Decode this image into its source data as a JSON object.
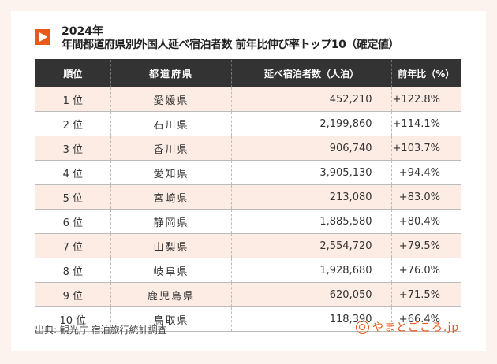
{
  "title": {
    "year": "2024年",
    "main": "年間都道府県別外国人延べ宿泊者数 前年比伸び率トップ10（確定値）"
  },
  "table": {
    "headers": [
      "順位",
      "都道府県",
      "延べ宿泊者数（人泊）",
      "前年比（%）"
    ],
    "rows": [
      [
        "1 位",
        "愛媛県",
        "452,210",
        "+122.8%"
      ],
      [
        "2 位",
        "石川県",
        "2,199,860",
        "+114.1%"
      ],
      [
        "3 位",
        "香川県",
        "906,740",
        "+103.7%"
      ],
      [
        "4 位",
        "愛知県",
        "3,905,130",
        "+94.4%"
      ],
      [
        "5 位",
        "宮崎県",
        "213,080",
        "+83.0%"
      ],
      [
        "6 位",
        "静岡県",
        "1,885,580",
        "+80.4%"
      ],
      [
        "7 位",
        "山梨県",
        "2,554,720",
        "+79.5%"
      ],
      [
        "8 位",
        "岐阜県",
        "1,928,680",
        "+76.0%"
      ],
      [
        "9 位",
        "鹿児島県",
        "620,050",
        "+71.5%"
      ],
      [
        "10 位",
        "鳥取県",
        "118,390",
        "+66.4%"
      ]
    ]
  },
  "footer": {
    "source": "出典: 観光庁 宿泊旅行統計調査",
    "logo": "やまとごころ.jp"
  },
  "colors": {
    "accent": "#e85a1a",
    "header_bg": "#333333",
    "row_alt": "#fdece4"
  }
}
